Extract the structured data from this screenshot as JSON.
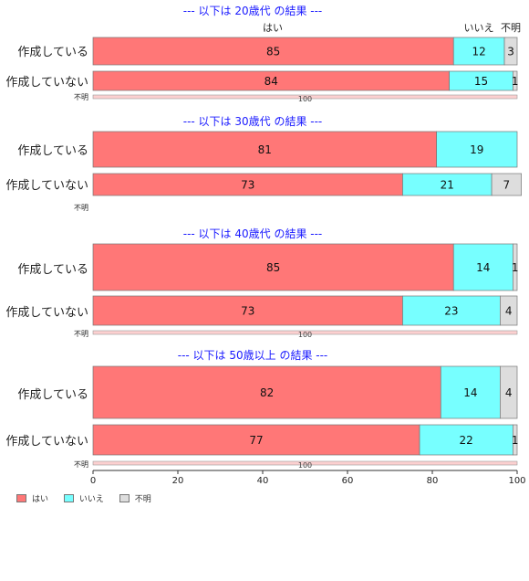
{
  "colors": {
    "yes": "#ff7777",
    "no": "#77ffff",
    "unknown": "#dddddd",
    "title": "#1a1aff"
  },
  "legend": [
    {
      "label": "はい",
      "color": "#ff7777"
    },
    {
      "label": "いいえ",
      "color": "#77ffff"
    },
    {
      "label": "不明",
      "color": "#dddddd"
    }
  ],
  "chart_data": {
    "type": "bar",
    "orientation": "horizontal",
    "stacked": true,
    "xlim": [
      0,
      100
    ],
    "xticks": [
      "0",
      "20",
      "40",
      "60",
      "80",
      "100"
    ],
    "header_labels": [
      "はい",
      "いいえ",
      "不明"
    ],
    "series_names": [
      "はい",
      "いいえ",
      "不明"
    ],
    "panels": [
      {
        "title": "--- 以下は 20歳代 の結果 ---",
        "rows": [
          {
            "label": "作成している",
            "values": [
              85,
              12,
              3
            ]
          },
          {
            "label": "作成していない",
            "values": [
              84,
              15,
              1
            ]
          },
          {
            "label": "不明",
            "values": [
              0,
              0,
              100
            ],
            "value_label": "100"
          }
        ]
      },
      {
        "title": "--- 以下は 30歳代 の結果 ---",
        "rows": [
          {
            "label": "作成している",
            "values": [
              81,
              19,
              0
            ]
          },
          {
            "label": "作成していない",
            "values": [
              73,
              21,
              7
            ]
          },
          {
            "label": "不明",
            "values": [
              0,
              0,
              0
            ],
            "value_label": ""
          }
        ]
      },
      {
        "title": "--- 以下は 40歳代 の結果 ---",
        "rows": [
          {
            "label": "作成している",
            "values": [
              85,
              14,
              1
            ]
          },
          {
            "label": "作成していない",
            "values": [
              73,
              23,
              4
            ]
          },
          {
            "label": "不明",
            "values": [
              0,
              0,
              100
            ],
            "value_label": "100"
          }
        ]
      },
      {
        "title": "--- 以下は 50歳以上 の結果 ---",
        "rows": [
          {
            "label": "作成している",
            "values": [
              82,
              14,
              4
            ]
          },
          {
            "label": "作成していない",
            "values": [
              77,
              22,
              1
            ]
          },
          {
            "label": "不明",
            "values": [
              0,
              0,
              100
            ],
            "value_label": "100"
          }
        ]
      }
    ]
  }
}
